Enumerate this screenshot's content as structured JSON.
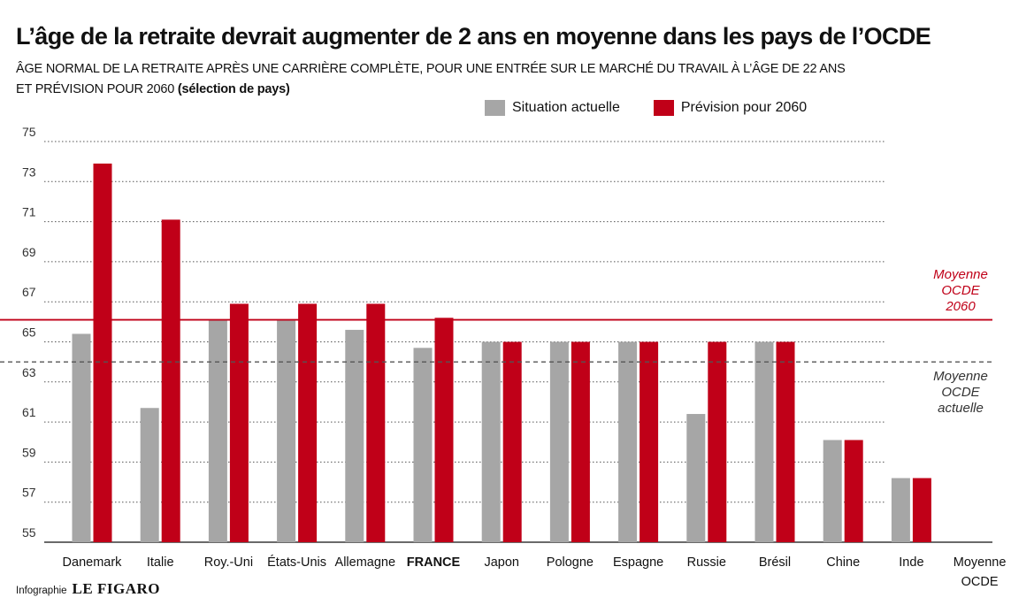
{
  "header": {
    "title": "L’âge de la retraite devrait augmenter de 2 ans en moyenne dans les pays de l’OCDE",
    "subtitle_line1": "ÂGE NORMAL DE LA RETRAITE APRÈS UNE CARRIÈRE COMPLÈTE, POUR UNE ENTRÉE SUR LE MARCHÉ DU TRAVAIL À L’ÂGE DE 22 ANS",
    "subtitle_line2_main": "ET PRÉVISION POUR 2060 ",
    "subtitle_line2_bold": "(sélection de pays)"
  },
  "footer": {
    "credit": "Infographie",
    "brand": "LE FIGARO"
  },
  "chart_data": {
    "type": "bar",
    "categories": [
      "Danemark",
      "Italie",
      "Roy.-Uni",
      "États-Unis",
      "Allemagne",
      "FRANCE",
      "Japon",
      "Pologne",
      "Espagne",
      "Russie",
      "Brésil",
      "Chine",
      "Inde",
      "Moyenne\nOCDE"
    ],
    "highlight_category": "FRANCE",
    "series": [
      {
        "name": "Situation actuelle",
        "color": "#a6a6a6",
        "values": [
          65.4,
          61.7,
          66.1,
          66.1,
          65.6,
          64.7,
          65.0,
          65.0,
          65.0,
          61.4,
          65.0,
          60.1,
          58.2,
          null
        ]
      },
      {
        "name": "Prévision pour 2060",
        "color": "#c00018",
        "values": [
          73.9,
          71.1,
          66.9,
          66.9,
          66.9,
          66.2,
          65.0,
          65.0,
          65.0,
          65.0,
          65.0,
          60.1,
          58.2,
          null
        ]
      }
    ],
    "ylim": [
      55,
      75
    ],
    "yticks": [
      75,
      73,
      71,
      69,
      67,
      65,
      63,
      61,
      59,
      57,
      55
    ],
    "grid": "dotted",
    "legend_position": "top-right",
    "reference_lines": [
      {
        "label_lines": [
          "Moyenne",
          "OCDE",
          "2060"
        ],
        "value": 66.1,
        "style": "solid",
        "color": "#c00018"
      },
      {
        "label_lines": [
          "Moyenne",
          "OCDE",
          "actuelle"
        ],
        "value": 64.0,
        "style": "dashed",
        "color": "#555555"
      }
    ]
  }
}
